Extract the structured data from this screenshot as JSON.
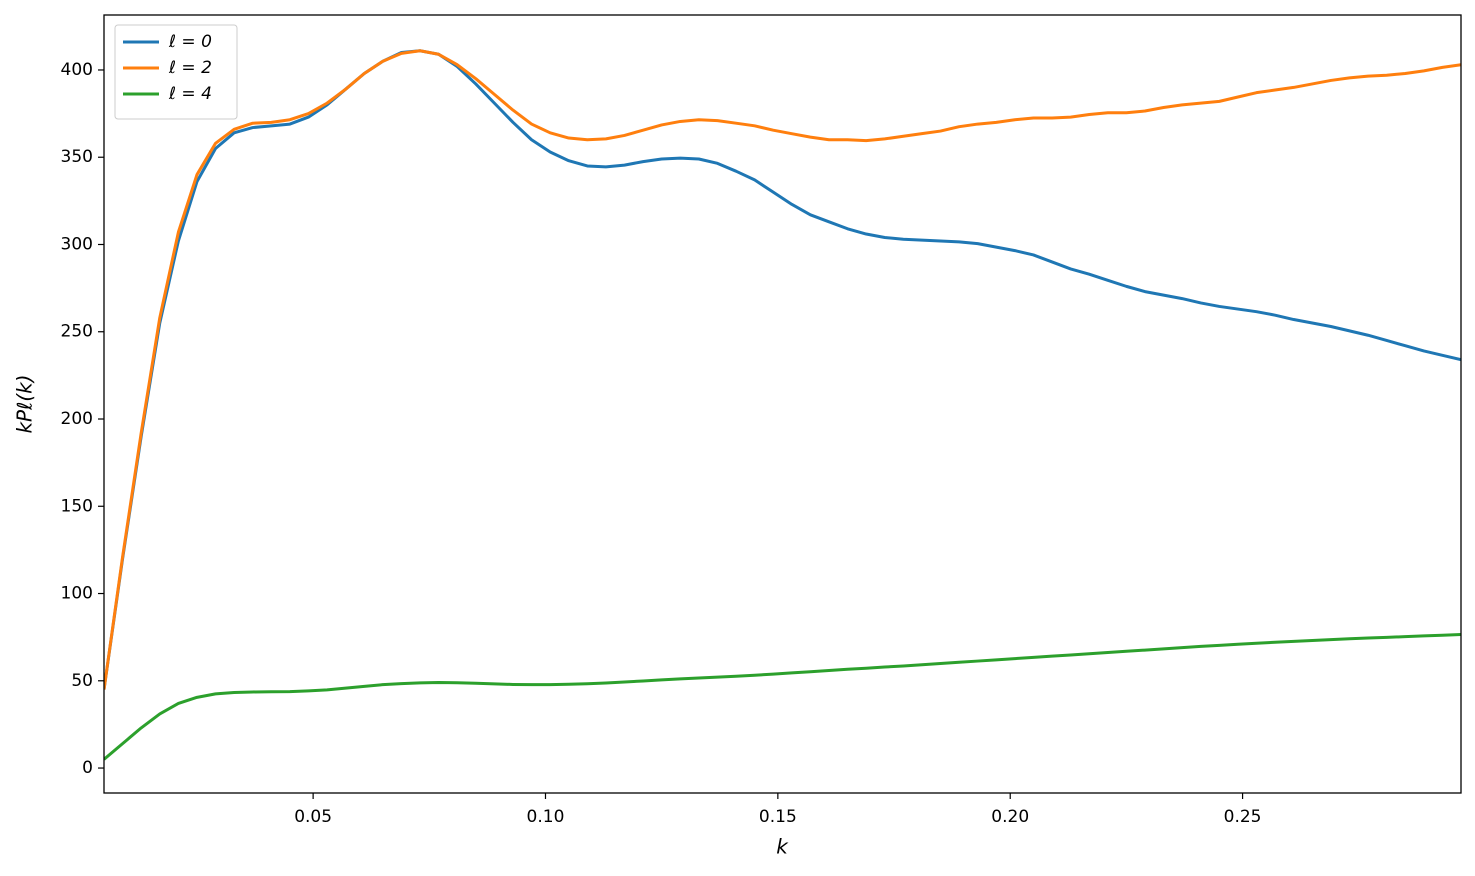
{
  "chart_data": {
    "type": "line",
    "xlabel": "k",
    "ylabel": "kPℓ(k)",
    "x": [
      0.005,
      0.009,
      0.013,
      0.017,
      0.021,
      0.025,
      0.029,
      0.033,
      0.037,
      0.041,
      0.045,
      0.049,
      0.053,
      0.057,
      0.061,
      0.065,
      0.069,
      0.073,
      0.077,
      0.081,
      0.085,
      0.089,
      0.093,
      0.097,
      0.101,
      0.105,
      0.109,
      0.113,
      0.117,
      0.121,
      0.125,
      0.129,
      0.133,
      0.137,
      0.141,
      0.145,
      0.149,
      0.153,
      0.157,
      0.161,
      0.165,
      0.169,
      0.173,
      0.177,
      0.181,
      0.185,
      0.189,
      0.193,
      0.197,
      0.201,
      0.205,
      0.209,
      0.213,
      0.217,
      0.221,
      0.225,
      0.229,
      0.233,
      0.237,
      0.241,
      0.245,
      0.249,
      0.253,
      0.257,
      0.261,
      0.265,
      0.269,
      0.273,
      0.277,
      0.281,
      0.285,
      0.289,
      0.293,
      0.297
    ],
    "series": [
      {
        "name": "ℓ = 0",
        "color": "#1f77b4",
        "values": [
          45,
          120,
          190,
          255,
          302,
          336,
          355,
          364,
          367,
          368,
          369,
          373,
          380,
          389,
          398,
          405,
          410,
          411,
          409,
          402,
          392,
          381,
          370,
          360,
          353,
          348,
          345,
          344.5,
          345.5,
          347.5,
          349,
          349.5,
          349,
          346.5,
          342,
          337,
          330,
          323,
          317,
          313,
          309,
          306,
          304,
          303,
          302.5,
          302,
          301.5,
          300.5,
          298.5,
          296.5,
          294,
          290,
          286,
          283,
          279.5,
          276,
          273,
          271,
          269,
          266.5,
          264.5,
          263,
          261.5,
          259.5,
          257,
          255,
          253,
          250.5,
          248,
          245,
          242,
          239,
          236.5,
          234
        ]
      },
      {
        "name": "ℓ = 2",
        "color": "#ff7f0e",
        "values": [
          45,
          121,
          192,
          258,
          307,
          340,
          358,
          366,
          369.5,
          370,
          371.5,
          375,
          381,
          389,
          398,
          405,
          409.5,
          411,
          409,
          403,
          395,
          386,
          377,
          369,
          364,
          361,
          360,
          360.5,
          362.5,
          365.5,
          368.5,
          370.5,
          371.5,
          371,
          369.5,
          368,
          365.5,
          363.5,
          361.5,
          360,
          360,
          359.5,
          360.5,
          362,
          363.5,
          365,
          367.5,
          369,
          370,
          371.5,
          372.5,
          372.5,
          373,
          374.5,
          375.5,
          375.5,
          376.5,
          378.5,
          380,
          381,
          382,
          384.5,
          387,
          388.5,
          390,
          392,
          394,
          395.5,
          396.5,
          397,
          398,
          399.5,
          401.5,
          403
        ]
      },
      {
        "name": "ℓ = 4",
        "color": "#2ca02c",
        "values": [
          5,
          14,
          23,
          31,
          37,
          40.5,
          42.5,
          43.3,
          43.6,
          43.7,
          43.8,
          44.2,
          44.8,
          45.8,
          46.8,
          47.8,
          48.4,
          48.8,
          49,
          48.9,
          48.6,
          48.2,
          47.9,
          47.8,
          47.8,
          48,
          48.3,
          48.7,
          49.3,
          49.9,
          50.5,
          51.1,
          51.6,
          52.1,
          52.6,
          53.2,
          53.8,
          54.5,
          55.2,
          55.9,
          56.6,
          57.2,
          57.9,
          58.5,
          59.2,
          59.9,
          60.6,
          61.3,
          62,
          62.7,
          63.4,
          64.1,
          64.8,
          65.5,
          66.2,
          66.9,
          67.6,
          68.3,
          69,
          69.7,
          70.3,
          70.9,
          71.5,
          72.1,
          72.6,
          73.1,
          73.6,
          74.1,
          74.5,
          74.9,
          75.3,
          75.7,
          76.1,
          76.5
        ]
      }
    ],
    "xlim": [
      0.005,
      0.297
    ],
    "ylim": [
      -14.3,
      431.5
    ],
    "xticks": [
      0.05,
      {
        "value": 0.1,
        "label": "0.10"
      },
      0.15,
      {
        "value": 0.2,
        "label": "0.20"
      },
      0.25
    ],
    "yticks": [
      0,
      50,
      100,
      150,
      200,
      250,
      300,
      350,
      400
    ],
    "grid": false,
    "legend": "upper left"
  }
}
